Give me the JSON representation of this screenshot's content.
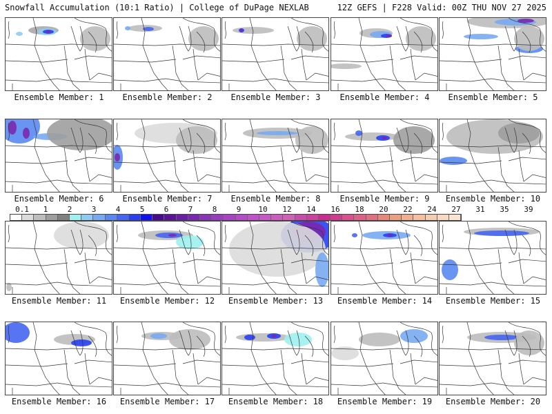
{
  "header": {
    "title_left": "Snowfall Accumulation (10:1 Ratio) | College of DuPage NEXLAB",
    "title_right": "12Z GEFS | F228 Valid: 00Z THU NOV 27 2025"
  },
  "colorbar": {
    "tick_labels": [
      "0.1",
      "1",
      "2",
      "3",
      "4",
      "5",
      "6",
      "7",
      "8",
      "9",
      "10",
      "12",
      "14",
      "16",
      "18",
      "20",
      "22",
      "24",
      "27",
      "31",
      "35",
      "39"
    ],
    "colors": [
      "#ffffff",
      "#dcdcdc",
      "#bdbdbd",
      "#9e9e9e",
      "#808080",
      "#9ff0f0",
      "#8ecbf2",
      "#78aaf2",
      "#5a88f0",
      "#4566f2",
      "#2840f2",
      "#1010f0",
      "#4a0a8c",
      "#5a1496",
      "#6a1ea6",
      "#7a28b0",
      "#8a34b8",
      "#9a3cc0",
      "#a844c4",
      "#b44cca",
      "#c050cc",
      "#c858c8",
      "#cc5cc0",
      "#d060b8",
      "#c84cac",
      "#d040a0",
      "#cc2c90",
      "#d03c90",
      "#d8508c",
      "#dc6088",
      "#e07080",
      "#e88878",
      "#eca080",
      "#f0b090",
      "#f4c0a0",
      "#f6ccb0",
      "#f8d8c0",
      "#fbe4d0"
    ]
  },
  "panels": [
    {
      "label": "Ensemble Member: 1"
    },
    {
      "label": "Ensemble Member: 2"
    },
    {
      "label": "Ensemble Member: 3"
    },
    {
      "label": "Ensemble Member: 4"
    },
    {
      "label": "Ensemble Member: 5"
    },
    {
      "label": "Ensemble Member: 6"
    },
    {
      "label": "Ensemble Member: 7"
    },
    {
      "label": "Ensemble Member: 8"
    },
    {
      "label": "Ensemble Member: 9"
    },
    {
      "label": "Ensemble Member: 10"
    },
    {
      "label": "Ensemble Member: 11"
    },
    {
      "label": "Ensemble Member: 12"
    },
    {
      "label": "Ensemble Member: 13"
    },
    {
      "label": "Ensemble Member: 14"
    },
    {
      "label": "Ensemble Member: 15"
    },
    {
      "label": "Ensemble Member: 16"
    },
    {
      "label": "Ensemble Member: 17"
    },
    {
      "label": "Ensemble Member: 18"
    },
    {
      "label": "Ensemble Member: 19"
    },
    {
      "label": "Ensemble Member: 20"
    }
  ]
}
